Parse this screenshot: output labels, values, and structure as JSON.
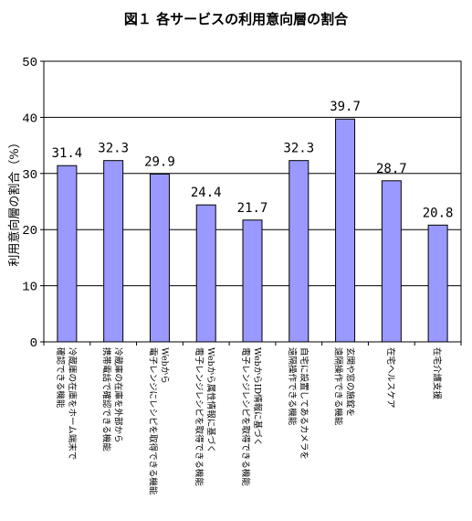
{
  "chart_data": {
    "type": "bar",
    "title": "図１ 各サービスの利用意向層の割合",
    "ylabel": "利用意向層の割合（%）",
    "ylim": [
      0,
      50
    ],
    "yticks": [
      0,
      10,
      20,
      30,
      40,
      50
    ],
    "grid": true,
    "bar_color": "#9999ff",
    "categories": [
      [
        "冷蔵庫の在庫をホーム端末で",
        "確認できる機能"
      ],
      [
        "冷蔵庫の在庫を外部から",
        "携帯電話で確認できる機能"
      ],
      [
        "Webから",
        "電子レンジにレシピを取得できる機能"
      ],
      [
        "Webから属性情報に基づく",
        "電子レンジレシピを取得できる機能"
      ],
      [
        "WebからID情報に基づく",
        "電子レンジレシピを取得できる機能"
      ],
      [
        "自宅に設置してあるカメラを",
        "遠隔操作できる機能"
      ],
      [
        "玄関や窓の施錠を",
        "遠隔操作できる機能"
      ],
      [
        "在宅ヘルスケア"
      ],
      [
        "在宅介護支援"
      ]
    ],
    "values": [
      31.4,
      32.3,
      29.9,
      24.4,
      21.7,
      32.3,
      39.7,
      28.7,
      20.8
    ],
    "data_labels": [
      "31.4",
      "32.3",
      "29.9",
      "24.4",
      "21.7",
      "32.3",
      "39.7",
      "28.7",
      "20.8"
    ]
  }
}
